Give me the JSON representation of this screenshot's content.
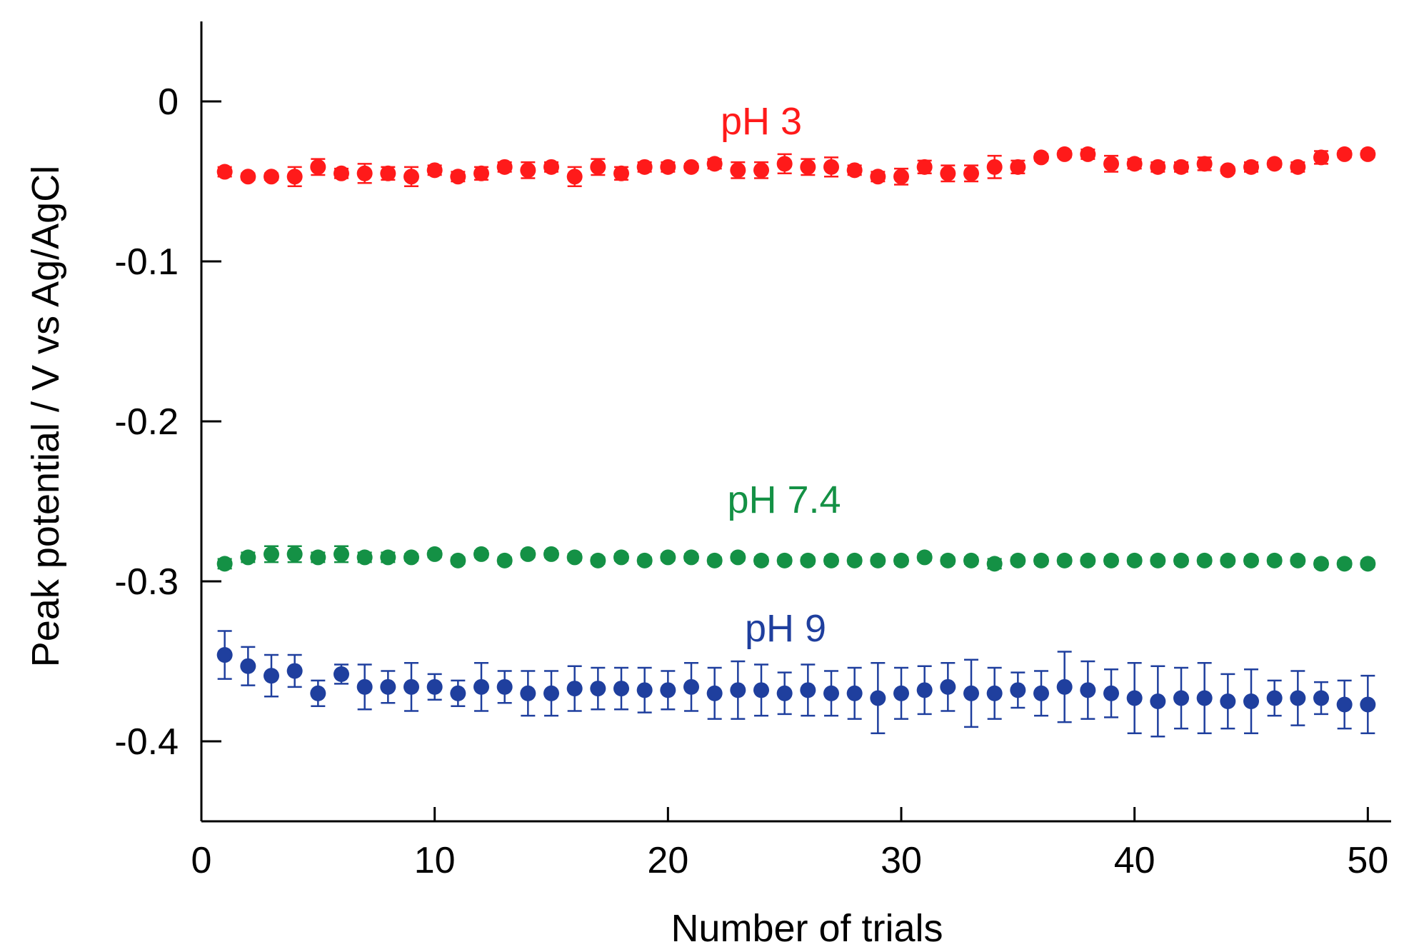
{
  "chart_data": {
    "type": "scatter",
    "title": "",
    "xlabel": "Number of trials",
    "ylabel": "Peak potential / V vs Ag/AgCl",
    "xlim": [
      0,
      51
    ],
    "ylim": [
      -0.45,
      0.05
    ],
    "xticks": [
      0,
      10,
      20,
      30,
      40,
      50
    ],
    "xtick_labels": [
      "0",
      "10",
      "20",
      "30",
      "40",
      "50"
    ],
    "yticks": [
      0,
      -0.1,
      -0.2,
      -0.3,
      -0.4
    ],
    "ytick_labels": [
      "0",
      "-0.1",
      "-0.2",
      "-0.3",
      "-0.4"
    ],
    "grid": false,
    "legend": "none",
    "series": [
      {
        "name": "pH 3",
        "label": "pH 3",
        "color": "#ff1a1a",
        "x": [
          1,
          2,
          3,
          4,
          5,
          6,
          7,
          8,
          9,
          10,
          11,
          12,
          13,
          14,
          15,
          16,
          17,
          18,
          19,
          20,
          21,
          22,
          23,
          24,
          25,
          26,
          27,
          28,
          29,
          30,
          31,
          32,
          33,
          34,
          35,
          36,
          37,
          38,
          39,
          40,
          41,
          42,
          43,
          44,
          45,
          46,
          47,
          48,
          49,
          50
        ],
        "y": [
          -0.044,
          -0.047,
          -0.047,
          -0.047,
          -0.041,
          -0.045,
          -0.045,
          -0.045,
          -0.047,
          -0.043,
          -0.047,
          -0.045,
          -0.041,
          -0.043,
          -0.041,
          -0.047,
          -0.041,
          -0.045,
          -0.041,
          -0.041,
          -0.041,
          -0.039,
          -0.043,
          -0.043,
          -0.039,
          -0.041,
          -0.041,
          -0.043,
          -0.047,
          -0.047,
          -0.041,
          -0.045,
          -0.045,
          -0.041,
          -0.041,
          -0.035,
          -0.033,
          -0.033,
          -0.039,
          -0.039,
          -0.041,
          -0.041,
          -0.039,
          -0.043,
          -0.041,
          -0.039,
          -0.041,
          -0.035,
          -0.033,
          -0.033
        ],
        "err": [
          0.003,
          0.002,
          0.002,
          0.006,
          0.005,
          0.003,
          0.006,
          0.004,
          0.006,
          0.003,
          0.003,
          0.004,
          0.003,
          0.005,
          0.003,
          0.006,
          0.005,
          0.004,
          0.003,
          0.003,
          0.002,
          0.003,
          0.005,
          0.005,
          0.006,
          0.005,
          0.006,
          0.003,
          0.003,
          0.005,
          0.004,
          0.005,
          0.005,
          0.007,
          0.004,
          0.002,
          0.002,
          0.003,
          0.005,
          0.003,
          0.003,
          0.003,
          0.004,
          0.002,
          0.003,
          0.002,
          0.003,
          0.004,
          0.002,
          0.002
        ]
      },
      {
        "name": "pH 7.4",
        "label": "pH 7.4",
        "color": "#149145",
        "x": [
          1,
          2,
          3,
          4,
          5,
          6,
          7,
          8,
          9,
          10,
          11,
          12,
          13,
          14,
          15,
          16,
          17,
          18,
          19,
          20,
          21,
          22,
          23,
          24,
          25,
          26,
          27,
          28,
          29,
          30,
          31,
          32,
          33,
          34,
          35,
          36,
          37,
          38,
          39,
          40,
          41,
          42,
          43,
          44,
          45,
          46,
          47,
          48,
          49,
          50
        ],
        "y": [
          -0.289,
          -0.285,
          -0.283,
          -0.283,
          -0.285,
          -0.283,
          -0.285,
          -0.285,
          -0.285,
          -0.283,
          -0.287,
          -0.283,
          -0.287,
          -0.283,
          -0.283,
          -0.285,
          -0.287,
          -0.285,
          -0.287,
          -0.285,
          -0.285,
          -0.287,
          -0.285,
          -0.287,
          -0.287,
          -0.287,
          -0.287,
          -0.287,
          -0.287,
          -0.287,
          -0.285,
          -0.287,
          -0.287,
          -0.289,
          -0.287,
          -0.287,
          -0.287,
          -0.287,
          -0.287,
          -0.287,
          -0.287,
          -0.287,
          -0.287,
          -0.287,
          -0.287,
          -0.287,
          -0.287,
          -0.289,
          -0.289,
          -0.289
        ],
        "err": [
          0.003,
          0.003,
          0.005,
          0.005,
          0.003,
          0.005,
          0.003,
          0.003,
          0.002,
          0.002,
          0.002,
          0.002,
          0.002,
          0.002,
          0.002,
          0.002,
          0.002,
          0.002,
          0.002,
          0.002,
          0.002,
          0.002,
          0.002,
          0.002,
          0.002,
          0.002,
          0.002,
          0.002,
          0.002,
          0.002,
          0.002,
          0.002,
          0.002,
          0.003,
          0.002,
          0.002,
          0.002,
          0.002,
          0.002,
          0.002,
          0.002,
          0.002,
          0.002,
          0.002,
          0.002,
          0.002,
          0.002,
          0.002,
          0.002,
          0.002
        ]
      },
      {
        "name": "pH 9",
        "label": "pH 9",
        "color": "#1f3f9e",
        "x": [
          1,
          2,
          3,
          4,
          5,
          6,
          7,
          8,
          9,
          10,
          11,
          12,
          13,
          14,
          15,
          16,
          17,
          18,
          19,
          20,
          21,
          22,
          23,
          24,
          25,
          26,
          27,
          28,
          29,
          30,
          31,
          32,
          33,
          34,
          35,
          36,
          37,
          38,
          39,
          40,
          41,
          42,
          43,
          44,
          45,
          46,
          47,
          48,
          49,
          50
        ],
        "y": [
          -0.346,
          -0.353,
          -0.359,
          -0.356,
          -0.37,
          -0.358,
          -0.366,
          -0.366,
          -0.366,
          -0.366,
          -0.37,
          -0.366,
          -0.366,
          -0.37,
          -0.37,
          -0.367,
          -0.367,
          -0.367,
          -0.368,
          -0.368,
          -0.366,
          -0.37,
          -0.368,
          -0.368,
          -0.37,
          -0.368,
          -0.37,
          -0.37,
          -0.373,
          -0.37,
          -0.368,
          -0.366,
          -0.37,
          -0.37,
          -0.368,
          -0.37,
          -0.366,
          -0.368,
          -0.37,
          -0.373,
          -0.375,
          -0.373,
          -0.373,
          -0.375,
          -0.375,
          -0.373,
          -0.373,
          -0.373,
          -0.377,
          -0.377
        ],
        "err": [
          0.015,
          0.012,
          0.013,
          0.01,
          0.008,
          0.006,
          0.014,
          0.01,
          0.015,
          0.008,
          0.008,
          0.015,
          0.01,
          0.014,
          0.014,
          0.014,
          0.013,
          0.013,
          0.014,
          0.012,
          0.015,
          0.016,
          0.018,
          0.016,
          0.013,
          0.016,
          0.014,
          0.016,
          0.022,
          0.016,
          0.015,
          0.015,
          0.021,
          0.016,
          0.011,
          0.014,
          0.022,
          0.018,
          0.015,
          0.022,
          0.022,
          0.019,
          0.022,
          0.017,
          0.02,
          0.011,
          0.017,
          0.01,
          0.015,
          0.018
        ]
      }
    ]
  }
}
